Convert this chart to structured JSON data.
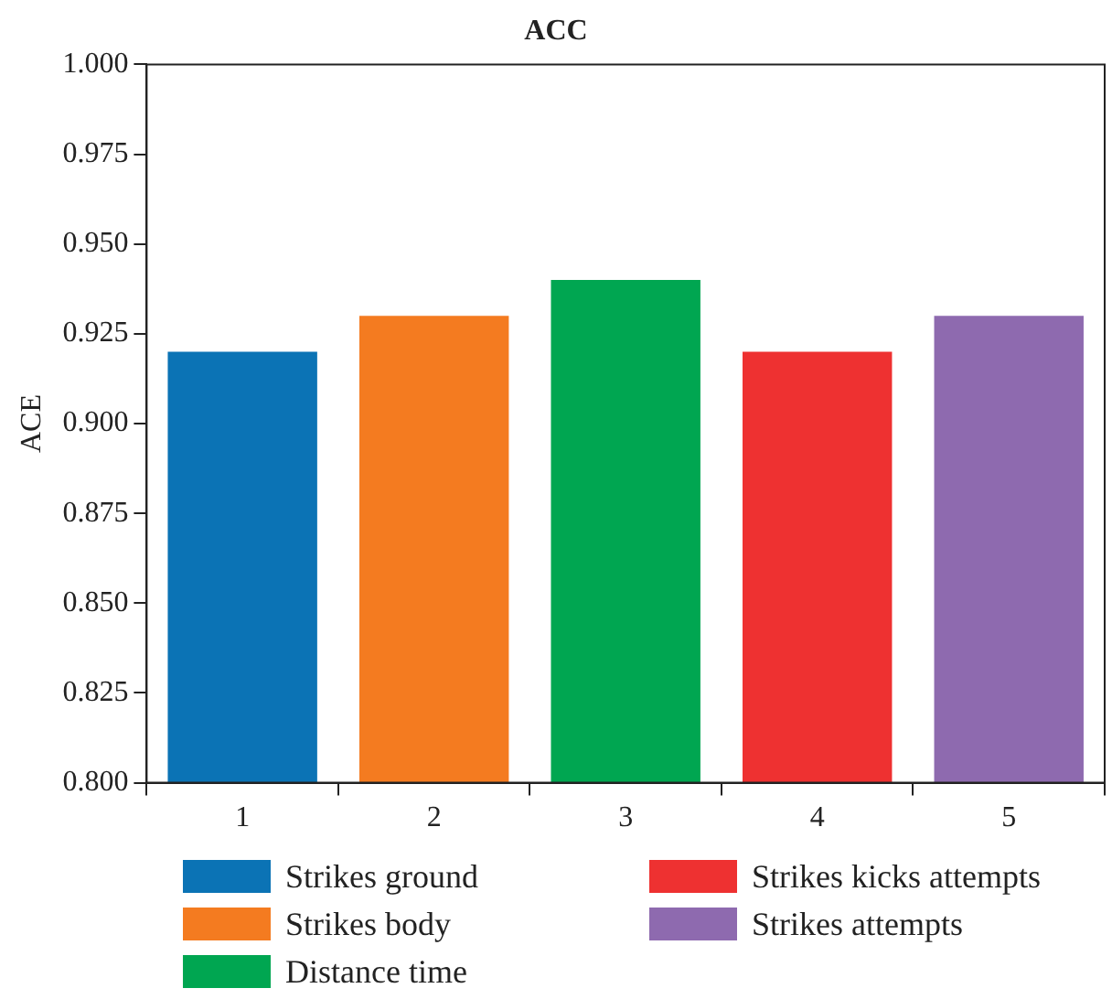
{
  "chart_data": {
    "type": "bar",
    "title": "ACC",
    "ylabel": "ACE",
    "categories": [
      "1",
      "2",
      "3",
      "4",
      "5"
    ],
    "series": [
      {
        "name": "Strikes ground",
        "color": "#0b73b5",
        "values": [
          0.92,
          null,
          null,
          null,
          null
        ]
      },
      {
        "name": "Strikes body",
        "color": "#f47b20",
        "values": [
          null,
          0.93,
          null,
          null,
          null
        ]
      },
      {
        "name": "Distance time",
        "color": "#00a651",
        "values": [
          null,
          null,
          0.94,
          null,
          null
        ]
      },
      {
        "name": "Strikes kicks attempts",
        "color": "#ee3131",
        "values": [
          null,
          null,
          null,
          0.92,
          null
        ]
      },
      {
        "name": "Strikes attempts",
        "color": "#8e6aaf",
        "values": [
          null,
          null,
          null,
          null,
          0.93
        ]
      }
    ],
    "ylim": [
      0.8,
      1.0
    ],
    "yticks": [
      {
        "value": 0.8,
        "label": "0.800"
      },
      {
        "value": 0.825,
        "label": "0.825"
      },
      {
        "value": 0.85,
        "label": "0.850"
      },
      {
        "value": 0.875,
        "label": "0.875"
      },
      {
        "value": 0.9,
        "label": "0.900"
      },
      {
        "value": 0.925,
        "label": "0.925"
      },
      {
        "value": 0.95,
        "label": "0.950"
      },
      {
        "value": 0.975,
        "label": "0.975"
      },
      {
        "value": 1.0,
        "label": "1.000"
      }
    ],
    "grid": false,
    "legend": "bottom"
  }
}
